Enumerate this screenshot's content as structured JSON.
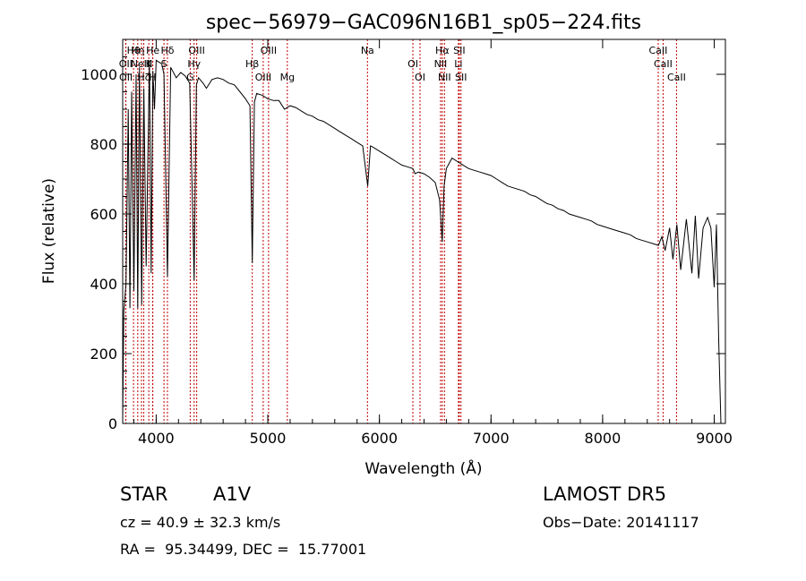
{
  "chart_data": {
    "type": "line",
    "title": "spec−56979−GAC096N16B1_sp05−224.fits",
    "xlabel": "Wavelength (Å)",
    "ylabel": "Flux (relative)",
    "xlim": [
      3700,
      9100
    ],
    "ylim": [
      0,
      1100
    ],
    "x_ticks": [
      "4000",
      "5000",
      "6000",
      "7000",
      "8000",
      "9000"
    ],
    "y_ticks": [
      "0",
      "200",
      "400",
      "600",
      "800",
      "1000"
    ],
    "grid": false,
    "series": [
      {
        "x": [
          3700,
          3710,
          3730,
          3750,
          3765,
          3780,
          3800,
          3820,
          3835,
          3850,
          3870,
          3889,
          3910,
          3940,
          3955,
          3970,
          3985,
          4000,
          4050,
          4070,
          4101,
          4130,
          4180,
          4220,
          4260,
          4300,
          4320,
          4340,
          4360,
          4380,
          4420,
          4450,
          4500,
          4550,
          4600,
          4650,
          4700,
          4750,
          4800,
          4840,
          4861,
          4880,
          4900,
          4950,
          5000,
          5050,
          5100,
          5150,
          5200,
          5250,
          5300,
          5350,
          5400,
          5450,
          5500,
          5550,
          5600,
          5650,
          5700,
          5750,
          5800,
          5850,
          5895,
          5920,
          5950,
          6000,
          6050,
          6100,
          6150,
          6200,
          6250,
          6300,
          6320,
          6350,
          6400,
          6450,
          6500,
          6540,
          6563,
          6580,
          6600,
          6650,
          6700,
          6750,
          6800,
          6850,
          6900,
          6950,
          7000,
          7050,
          7100,
          7150,
          7200,
          7250,
          7300,
          7350,
          7400,
          7450,
          7500,
          7550,
          7600,
          7650,
          7700,
          7750,
          7800,
          7850,
          7900,
          7950,
          8000,
          8050,
          8100,
          8150,
          8200,
          8250,
          8300,
          8350,
          8400,
          8450,
          8500,
          8530,
          8560,
          8600,
          8630,
          8665,
          8700,
          8750,
          8800,
          8830,
          8860,
          8900,
          8940,
          8970,
          9000,
          9020,
          9040,
          9060
        ],
        "y": [
          10,
          320,
          400,
          900,
          330,
          950,
          380,
          1000,
          330,
          1020,
          340,
          960,
          450,
          1040,
          430,
          1010,
          900,
          1040,
          1030,
          1000,
          420,
          1020,
          990,
          1005,
          995,
          975,
          700,
          410,
          970,
          990,
          975,
          960,
          985,
          990,
          985,
          975,
          970,
          950,
          930,
          910,
          460,
          920,
          945,
          940,
          930,
          925,
          925,
          900,
          910,
          905,
          895,
          885,
          880,
          870,
          865,
          855,
          845,
          835,
          825,
          815,
          805,
          795,
          680,
          795,
          790,
          780,
          770,
          760,
          750,
          740,
          735,
          730,
          715,
          720,
          715,
          705,
          690,
          640,
          520,
          680,
          730,
          760,
          750,
          740,
          730,
          725,
          720,
          715,
          710,
          700,
          690,
          680,
          675,
          670,
          665,
          655,
          650,
          640,
          630,
          625,
          615,
          610,
          600,
          595,
          590,
          585,
          580,
          570,
          565,
          560,
          555,
          550,
          545,
          540,
          530,
          525,
          520,
          515,
          510,
          535,
          495,
          560,
          470,
          570,
          440,
          585,
          430,
          595,
          415,
          560,
          590,
          560,
          390,
          570,
          240,
          0
        ]
      }
    ],
    "lines": [
      {
        "label": "Hθ",
        "x": 3797
      },
      {
        "label": "OII",
        "x": 3727
      },
      {
        "label": "OII",
        "x": 3729
      },
      {
        "label": "Hη",
        "x": 3835
      },
      {
        "label": "NeIII",
        "x": 3869
      },
      {
        "label": "Hζ",
        "x": 3889
      },
      {
        "label": "He",
        "x": 3970
      },
      {
        "label": "K",
        "x": 3934
      },
      {
        "label": "H",
        "x": 3968
      },
      {
        "label": "Hδ",
        "x": 4101
      },
      {
        "label": "S",
        "x": 4070
      },
      {
        "label": "G",
        "x": 4305
      },
      {
        "label": "OIII",
        "x": 4363
      },
      {
        "label": "Hγ",
        "x": 4340
      },
      {
        "label": "OIII",
        "x": 4959
      },
      {
        "label": "OIII",
        "x": 5007
      },
      {
        "label": "Hβ",
        "x": 4861
      },
      {
        "label": "Mg",
        "x": 5175
      },
      {
        "label": "Na",
        "x": 5893
      },
      {
        "label": "OI",
        "x": 6300
      },
      {
        "label": "OI",
        "x": 6364
      },
      {
        "label": "Hα",
        "x": 6563
      },
      {
        "label": "NII",
        "x": 6548
      },
      {
        "label": "NII",
        "x": 6583
      },
      {
        "label": "SII",
        "x": 6716
      },
      {
        "label": "Li",
        "x": 6708
      },
      {
        "label": "SII",
        "x": 6731
      },
      {
        "label": "CaII",
        "x": 8498
      },
      {
        "label": "CaII",
        "x": 8542
      },
      {
        "label": "CaII",
        "x": 8662
      }
    ]
  },
  "info": {
    "object_class": "STAR",
    "subclass": "A1V",
    "survey": "LAMOST DR5",
    "redshift": "cz = 40.9 ± 32.3 km/s",
    "obs_date": "Obs−Date: 20141117",
    "coords": "RA =  95.34499, DEC =  15.77001"
  },
  "colors": {
    "axes": "#000000",
    "spectrum": "#000000",
    "line_markers": "#c00000"
  }
}
